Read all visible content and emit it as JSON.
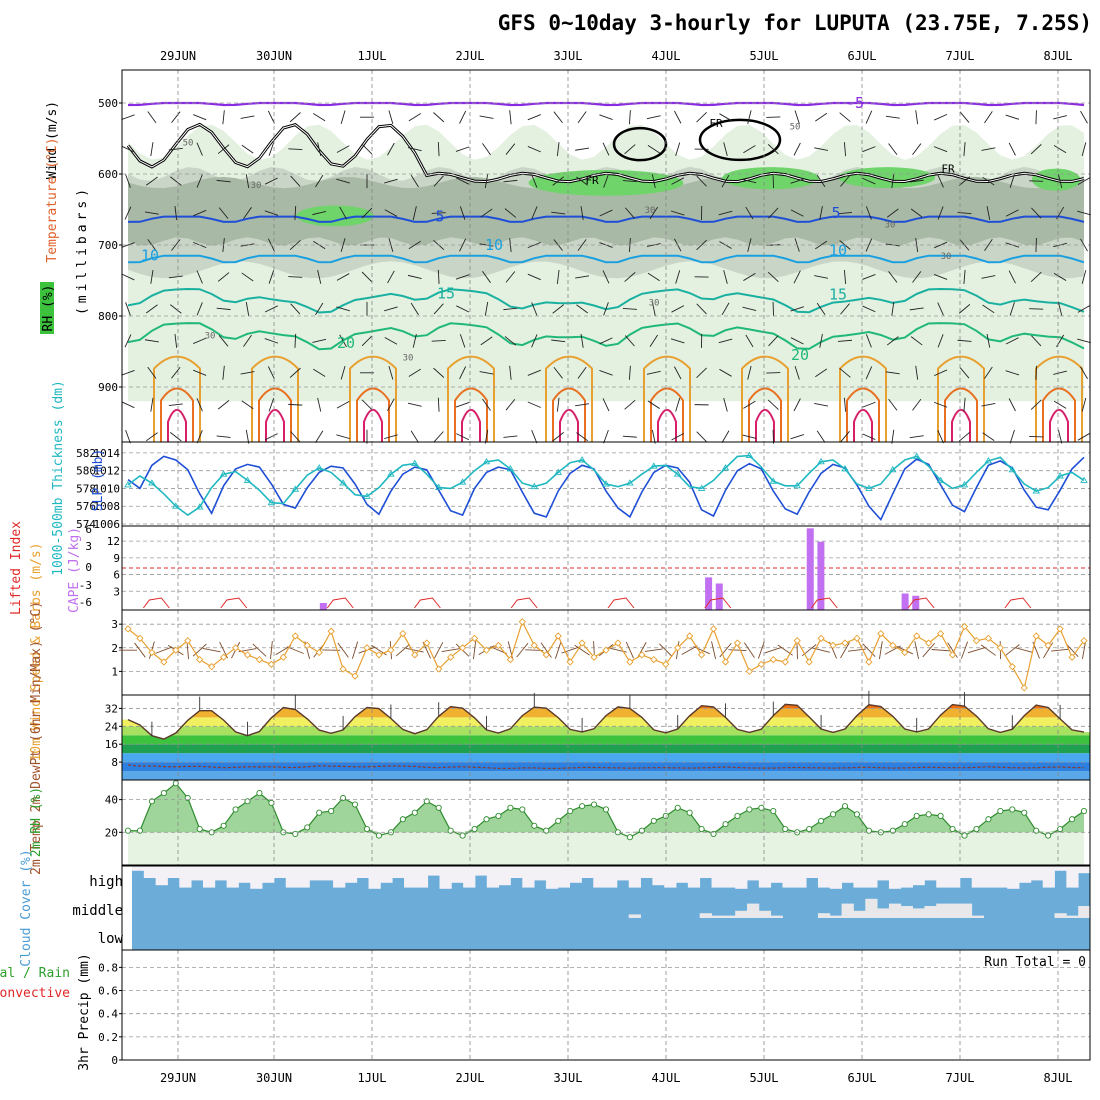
{
  "title": "GFS 0~10day 3-hourly for LUPUTA (23.75E, 7.25S)",
  "dates": [
    "29JUN",
    "30JUN",
    "1JUL",
    "2JUL",
    "3JUL",
    "4JUL",
    "5JUL",
    "6JUL",
    "7JUL",
    "8JUL"
  ],
  "chart_data": [
    {
      "type": "heatmap",
      "panel": "upper-air",
      "ylabel": "(millibars)",
      "ylabel_parts": [
        "Wind (m/s)",
        "Temperature (°C)",
        "RH (%)"
      ],
      "ylim": [
        1000,
        450
      ],
      "yticks": [
        500,
        600,
        700,
        800,
        900
      ],
      "isotherm_labels": [
        "-5",
        "5",
        "10",
        "15",
        "20"
      ],
      "rh_labels": [
        "30",
        "50",
        "10"
      ],
      "freezing_label": "FR",
      "colors": {
        "rh": "#5fd35f",
        "temp_minus5": "#8a2be2",
        "temp_5": "#1f4fd6",
        "temp_10": "#1aa0e0",
        "temp_15": "#1ab0a0",
        "temp_20": "#20b87a",
        "warm": "#e8a030"
      }
    },
    {
      "type": "line",
      "panel": "thickness-slp",
      "ylabel_left": "1000-500mb Thickness (dm)",
      "ylabel_right": "SLP (mb)",
      "left_ticks": [
        574,
        576,
        578,
        580,
        582
      ],
      "right_ticks": [
        1006,
        1008,
        1010,
        1012,
        1014
      ],
      "ylim_left": [
        574,
        583
      ],
      "ylim_right": [
        1006,
        1015
      ],
      "series": [
        {
          "name": "SLP (mb)",
          "axis": "right",
          "color": "#1f4fd6",
          "values": [
            1011,
            1010,
            1012.6,
            1013.6,
            1013.2,
            1012.1,
            1009.4,
            1007.2,
            1010.3,
            1012.2,
            1012.7,
            1012.4,
            1010.5,
            1008.2,
            1007.8,
            1010.1,
            1011.8,
            1012.5,
            1012.3,
            1010.5,
            1008.2,
            1007.1,
            1009.7,
            1011.6,
            1012.4,
            1012.1,
            1009.8,
            1007.5,
            1007,
            1010,
            1011.8,
            1012.4,
            1012.1,
            1009.6,
            1007.2,
            1006.8,
            1009.7,
            1011.7,
            1012.6,
            1012.2,
            1009.7,
            1007.8,
            1006.8,
            1009.6,
            1011.8,
            1012.6,
            1012.3,
            1010.7,
            1007.6,
            1006.9,
            1009.8,
            1012,
            1012.8,
            1012.2,
            1009.7,
            1007.7,
            1007.1,
            1009.6,
            1011.7,
            1012.7,
            1012.3,
            1010.4,
            1008,
            1006.5,
            1009.4,
            1012.2,
            1013.3,
            1012.7,
            1010.4,
            1008.1,
            1007.4,
            1010.1,
            1012.6,
            1013.1,
            1012.3,
            1009.8,
            1007.9,
            1007.6,
            1009.8,
            1012.2,
            1013.5
          ]
        },
        {
          "name": "1000-500mb Thickness (dm)",
          "axis": "left",
          "color": "#20b8c0",
          "values": [
            578.4,
            579.4,
            578.6,
            577.4,
            576,
            575,
            575.9,
            578.1,
            579.6,
            579.9,
            578.9,
            577.8,
            576.4,
            576.3,
            577.9,
            579.5,
            580.3,
            579.8,
            578.6,
            577.3,
            577.1,
            578.1,
            579.6,
            580.6,
            580.8,
            579.6,
            578.1,
            578,
            578.7,
            580,
            581,
            581.2,
            580.2,
            578.6,
            578.2,
            578.6,
            579.8,
            580.9,
            581.2,
            580.1,
            578.5,
            578.2,
            578.6,
            579.6,
            580.5,
            580.6,
            579.6,
            578.2,
            578,
            578.9,
            580.3,
            581.6,
            581.7,
            580.4,
            578.8,
            578.3,
            578.3,
            579.7,
            581,
            581.2,
            580.2,
            578.5,
            578,
            578.5,
            580.1,
            581.2,
            581.6,
            580.5,
            578.9,
            578,
            578.4,
            579.8,
            581.1,
            581.5,
            580.1,
            578.5,
            577.7,
            578.1,
            579.4,
            579.8,
            578.9
          ]
        }
      ]
    },
    {
      "type": "bar",
      "panel": "lifted-cape",
      "ylabel_left": "Lifted Index",
      "ylabel_right": "CAPE (J/kg)",
      "left_ticks": [
        "-6",
        "-3",
        "0",
        "3",
        "6"
      ],
      "right_ticks": [
        "3",
        "6",
        "9",
        "12"
      ],
      "ylim_cape": [
        0,
        14
      ],
      "lifted_index_zero_line": 0,
      "cape_bars": [
        {
          "x": 0.208,
          "value": 0.9
        },
        {
          "x": 0.606,
          "value": 5.5
        },
        {
          "x": 0.617,
          "value": 4.4
        },
        {
          "x": 0.711,
          "value": 14.3
        },
        {
          "x": 0.722,
          "value": 11.9
        },
        {
          "x": 0.809,
          "value": 2.6
        },
        {
          "x": 0.82,
          "value": 2.2
        }
      ],
      "lifted_index_bumps": [
        0.02,
        0.1,
        0.21,
        0.3,
        0.4,
        0.5,
        0.6,
        0.71,
        0.81,
        0.91
      ]
    },
    {
      "type": "line",
      "panel": "wind10m",
      "ylabel": "10m Wind Speed & Barbs (m/s)",
      "yticks": [
        1,
        2,
        3
      ],
      "ylim": [
        0,
        3.6
      ],
      "series": [
        {
          "name": "10m Wind Speed",
          "color": "#e8a030",
          "values": [
            2.8,
            2.4,
            1.8,
            1.4,
            1.9,
            2.3,
            1.5,
            1.2,
            1.6,
            2,
            1.7,
            1.5,
            1.3,
            1.6,
            2.5,
            2.1,
            1.8,
            2.7,
            1.1,
            0.8,
            2,
            1.7,
            1.9,
            2.6,
            1.7,
            2.2,
            1.1,
            1.6,
            2,
            2.4,
            1.9,
            2.1,
            1.5,
            3.1,
            2.1,
            1.7,
            2.5,
            1.4,
            2.2,
            1.6,
            1.9,
            2.2,
            1.4,
            1.7,
            1.5,
            1.3,
            2,
            2.5,
            1.7,
            2.8,
            1.4,
            2.2,
            1,
            1.3,
            1.5,
            1.4,
            2.3,
            1.4,
            2.4,
            2.1,
            2.2,
            2.4,
            1.4,
            2.6,
            2.1,
            1.8,
            2.5,
            2.2,
            2.6,
            1.7,
            2.9,
            2.3,
            2.4,
            2,
            1.2,
            0.3,
            2.5,
            2.1,
            2.8,
            1.6,
            2.3
          ]
        }
      ]
    },
    {
      "type": "area",
      "panel": "temp2m",
      "ylabel": "2m Temp 2m DewPt (6hr Min/Max) (°C)",
      "yticks": [
        8,
        16,
        24,
        32
      ],
      "ylim": [
        0,
        38
      ],
      "series": [
        {
          "name": "2m Temp",
          "values": [
            27,
            24.6,
            19.8,
            18.3,
            21,
            26.7,
            31,
            31,
            26.8,
            21.5,
            19.8,
            21.7,
            27.8,
            32.4,
            31.5,
            27.3,
            22.3,
            20.9,
            22.4,
            28.3,
            32.4,
            31.9,
            27.5,
            22.6,
            20.7,
            22.5,
            28.5,
            32.8,
            32.1,
            27.8,
            22.4,
            21,
            22.9,
            28.8,
            32.6,
            32.1,
            27.9,
            22.6,
            21.5,
            22.9,
            28.8,
            32.7,
            32,
            28,
            22.4,
            21.1,
            22.8,
            28.7,
            33.2,
            32.7,
            28,
            22.6,
            21.3,
            22.7,
            28.8,
            33.8,
            33.4,
            28.2,
            22.8,
            21.3,
            22.8,
            28.8,
            33.6,
            32.8,
            28.5,
            22.8,
            21.5,
            22.8,
            29,
            33.7,
            33,
            28.6,
            22.9,
            21.3,
            22.7,
            28.8,
            33.5,
            32.4,
            27.3,
            22.4,
            21.4
          ]
        },
        {
          "name": "2m DewPt",
          "values": [
            6.7,
            6.2,
            6.3,
            6,
            5.9,
            6.1,
            6.1,
            5.8,
            5.5,
            5.7,
            5.9,
            5.8,
            5.9,
            5.7,
            5.6,
            5.9,
            6.3,
            6.2,
            6.1,
            5.9,
            5.9,
            6.1,
            6.3,
            6.2,
            6.1,
            5.7,
            5.5,
            5.8,
            5.9,
            5.7,
            5.5,
            5.2,
            5.2,
            5.4,
            5.4,
            5.2,
            5.2,
            5.4,
            5.6,
            5.6,
            5.5,
            5.4,
            5.3,
            5.4,
            5.5,
            5.5,
            5.4,
            5.3,
            5.4,
            5.6,
            5.8,
            5.6,
            5.4,
            5.3,
            5.3,
            5.5,
            5.6,
            5.5,
            5.4,
            5.3,
            5.4,
            5.6,
            5.7,
            5.5,
            5.3,
            5.4,
            5.6,
            5.7,
            5.6,
            5.5,
            5.5,
            5.7,
            5.9,
            5.7,
            5.5,
            5.4,
            5.5,
            5.7,
            5.8,
            5.6,
            5.5
          ]
        }
      ]
    },
    {
      "type": "area",
      "panel": "rh2m",
      "ylabel": "2m RH (%)",
      "yticks": [
        20,
        40
      ],
      "ylim": [
        0,
        52
      ],
      "series": [
        {
          "name": "2m RH",
          "values": [
            21,
            21,
            39,
            44,
            50,
            41,
            22,
            20,
            24,
            34,
            39,
            44,
            38,
            20,
            19,
            23,
            32,
            33,
            41,
            37,
            22,
            18,
            20,
            28,
            32,
            39,
            35,
            21,
            18,
            22,
            28,
            30,
            35,
            34,
            24,
            21,
            27,
            33,
            36,
            37,
            34,
            20,
            17,
            21,
            27,
            30,
            35,
            32,
            22,
            19,
            25,
            30,
            34,
            35,
            33,
            22,
            20,
            22,
            27,
            31,
            36,
            31,
            21,
            20,
            21,
            25,
            30,
            31,
            30,
            22,
            18,
            22,
            28,
            33,
            34,
            32,
            21,
            18,
            22,
            28,
            33
          ]
        }
      ]
    },
    {
      "type": "heatmap",
      "panel": "cloud-cover",
      "ylabel": "Cloud Cover (%)",
      "row_labels": [
        "high",
        "middle",
        "low"
      ],
      "high_clear_fraction": [
        0.2,
        0.5,
        0.8,
        0.5,
        0.9,
        0.6,
        0.9,
        0.6,
        0.9,
        0.7,
        0.95,
        0.7,
        0.5,
        0.9,
        0.9,
        0.6,
        0.6,
        0.9,
        0.7,
        0.5,
        0.95,
        0.7,
        0.5,
        0.9,
        0.9,
        0.4,
        0.95,
        0.7,
        0.9,
        0.4,
        0.9,
        0.8,
        0.5,
        0.9,
        0.6,
        0.95,
        0.9,
        0.7,
        0.5,
        0.9,
        0.9,
        0.6,
        0.9,
        0.5,
        0.8,
        0.9,
        0.7,
        0.9,
        0.5,
        0.9,
        0.9,
        0.95,
        0.6,
        0.9,
        0.7,
        0.9,
        0.9,
        0.5,
        0.9,
        0.95,
        0.7,
        0.9,
        0.9,
        0.6,
        0.95,
        0.9,
        0.8,
        0.6,
        0.9,
        0.9,
        0.5,
        0.9,
        0.9,
        0.9,
        0.95,
        0.7,
        0.6,
        0.9,
        0.2,
        0.9,
        0.3
      ],
      "middle_clear_fraction": [
        0,
        0,
        0,
        0,
        0,
        0,
        0,
        0,
        0,
        0,
        0,
        0,
        0,
        0,
        0,
        0,
        0,
        0,
        0,
        0,
        0,
        0,
        0,
        0,
        0,
        0,
        0,
        0,
        0,
        0,
        0,
        0,
        0,
        0,
        0,
        0,
        0,
        0,
        0,
        0,
        0,
        0,
        0.15,
        0,
        0,
        0,
        0,
        0,
        0.2,
        0.1,
        0.1,
        0.3,
        0.6,
        0.3,
        0.1,
        0,
        0,
        0,
        0.2,
        0.1,
        0.6,
        0.3,
        0.8,
        0.4,
        0.6,
        0.5,
        0.4,
        0.5,
        0.6,
        0.6,
        0.6,
        0.1,
        0,
        0,
        0,
        0,
        0,
        0,
        0.2,
        0.1,
        0.5
      ]
    },
    {
      "type": "bar",
      "panel": "precip",
      "ylabel": "3hr Precip (mm)",
      "ylabel_left_partial": [
        "tal / Rain",
        "Convective"
      ],
      "yticks": [
        "0",
        "0.2",
        "0.4",
        "0.6",
        "0.8"
      ],
      "ylim": [
        0,
        0.95
      ],
      "values": [],
      "annotation": "Run Total = 0"
    }
  ]
}
